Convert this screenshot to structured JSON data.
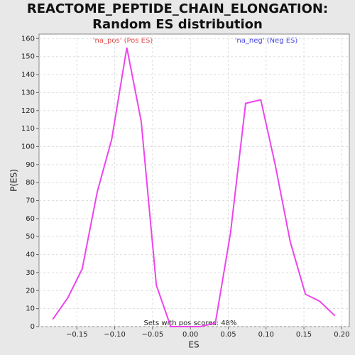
{
  "chart_data": {
    "type": "line",
    "title": "REACTOME_PEPTIDE_CHAIN_ELONGATION: Random ES distribution",
    "xlabel": "ES",
    "ylabel": "P(ES)",
    "annotations": [
      "'na_pos' (Pos ES)",
      "'na_neg' (Neg ES)",
      "Sets with pos scores: 48%"
    ],
    "x": [
      -0.182,
      -0.162,
      -0.143,
      -0.123,
      -0.104,
      -0.084,
      -0.065,
      -0.045,
      -0.026,
      -0.006,
      0.013,
      0.033,
      0.053,
      0.073,
      0.093,
      0.112,
      0.132,
      0.152,
      0.171,
      0.191
    ],
    "series": [
      {
        "name": "P(ES)",
        "color": "#ee44ee",
        "values": [
          4,
          16,
          32,
          75,
          104,
          155,
          114,
          23,
          0,
          0,
          0,
          2,
          52,
          124,
          126,
          90,
          47,
          18,
          14,
          6
        ]
      }
    ],
    "xlim": [
      -0.2,
      0.21
    ],
    "ylim": [
      0,
      162.5
    ],
    "xticks": [
      {
        "value": -0.15,
        "label": "−0.15"
      },
      {
        "value": -0.1,
        "label": "−0.10"
      },
      {
        "value": -0.05,
        "label": "−0.05"
      },
      {
        "value": 0,
        "label": "0.00"
      },
      {
        "value": 0.05,
        "label": "0.05"
      },
      {
        "value": 0.1,
        "label": "0.10"
      },
      {
        "value": 0.15,
        "label": "0.15"
      },
      {
        "value": 0.2,
        "label": "0.20"
      }
    ],
    "yticks": [
      0,
      10,
      20,
      30,
      40,
      50,
      60,
      70,
      80,
      90,
      100,
      110,
      120,
      130,
      140,
      150,
      160
    ],
    "grid": true
  }
}
